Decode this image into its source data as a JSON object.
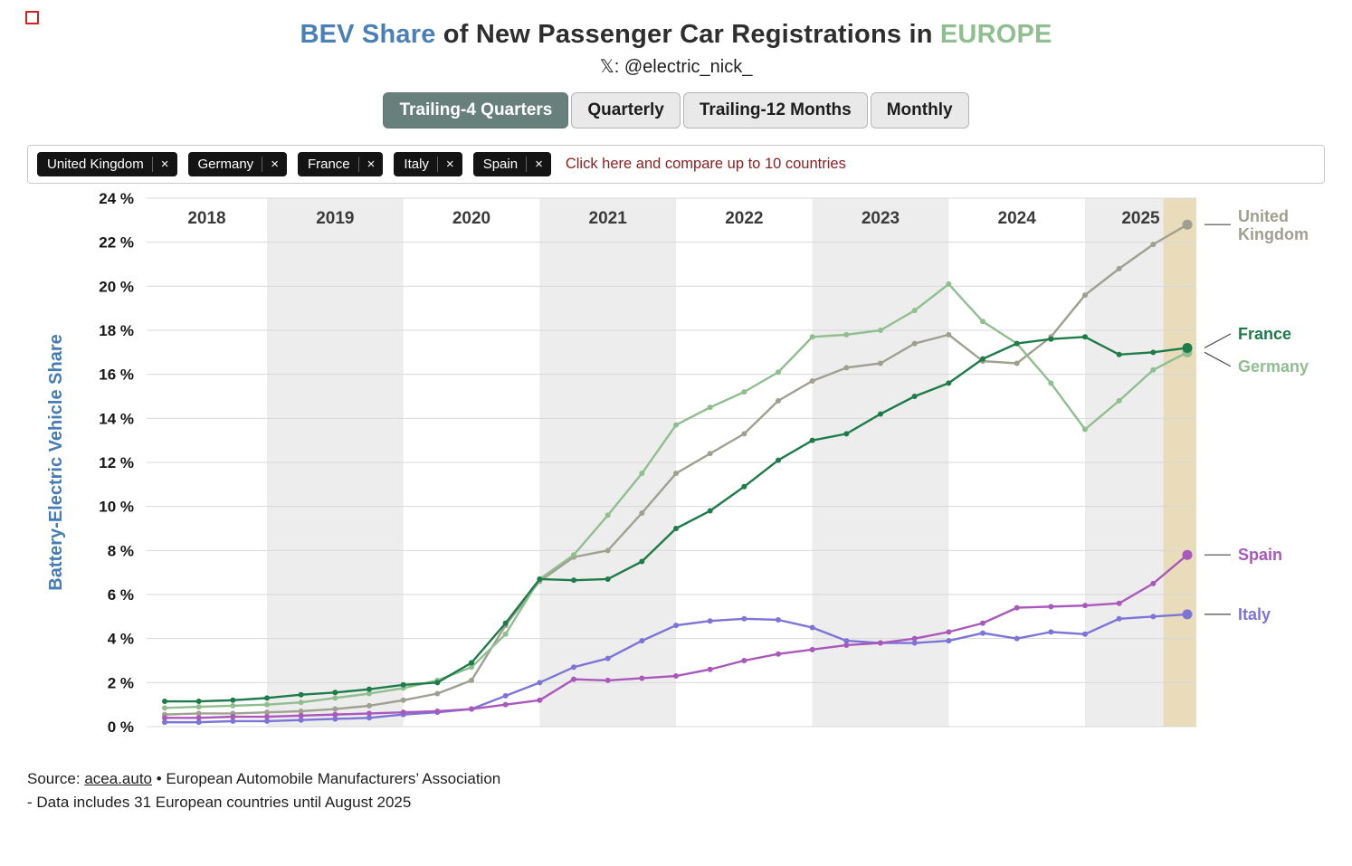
{
  "header": {
    "title_bev": "BEV Share",
    "title_mid": "of New Passenger Car Registrations in",
    "title_region": "EUROPE",
    "subtitle": "𝕏: @electric_nick_"
  },
  "tabs": [
    {
      "label": "Trailing-4 Quarters",
      "selected": true
    },
    {
      "label": "Quarterly",
      "selected": false
    },
    {
      "label": "Trailing-12 Months",
      "selected": false
    },
    {
      "label": "Monthly",
      "selected": false
    }
  ],
  "filters": {
    "chips": [
      "United Kingdom",
      "Germany",
      "France",
      "Italy",
      "Spain"
    ],
    "remove_icon": "×",
    "hint": "Click here and compare up to 10 countries"
  },
  "chart_data": {
    "type": "line",
    "title": "BEV Share of New Passenger Car Registrations in EUROPE",
    "xlabel": "",
    "ylabel": "Battery-Electric Vehicle Share",
    "ylim": [
      0,
      24
    ],
    "ytick_step": 2,
    "ytick_suffix": " %",
    "grid": true,
    "x_years": [
      "2018",
      "2019",
      "2020",
      "2021",
      "2022",
      "2023",
      "2024",
      "2025"
    ],
    "year_boundary_indices": [
      3,
      7,
      11,
      15,
      19,
      23,
      27
    ],
    "band_fill": "#ededed",
    "highlight_band": {
      "from_index": 29.3,
      "color": "#e9dcba"
    },
    "x": [
      "2018 Q1",
      "2018 Q2",
      "2018 Q3",
      "2018 Q4",
      "2019 Q1",
      "2019 Q2",
      "2019 Q3",
      "2019 Q4",
      "2020 Q1",
      "2020 Q2",
      "2020 Q3",
      "2020 Q4",
      "2021 Q1",
      "2021 Q2",
      "2021 Q3",
      "2021 Q4",
      "2022 Q1",
      "2022 Q2",
      "2022 Q3",
      "2022 Q4",
      "2023 Q1",
      "2023 Q2",
      "2023 Q3",
      "2023 Q4",
      "2024 Q1",
      "2024 Q2",
      "2024 Q3",
      "2024 Q4",
      "2025 Q1",
      "2025 Q2",
      "2025 Q3"
    ],
    "series": [
      {
        "name": "United Kingdom",
        "color": "#a0a090",
        "values": [
          0.55,
          0.6,
          0.6,
          0.65,
          0.7,
          0.8,
          0.95,
          1.2,
          1.5,
          2.1,
          4.6,
          6.6,
          7.7,
          8.0,
          9.7,
          11.5,
          12.4,
          13.3,
          14.8,
          15.7,
          16.3,
          16.5,
          17.4,
          17.8,
          16.6,
          16.5,
          17.7,
          19.6,
          20.8,
          21.9,
          22.8
        ]
      },
      {
        "name": "Germany",
        "color": "#8fbe8f",
        "values": [
          0.85,
          0.9,
          0.95,
          1.0,
          1.1,
          1.3,
          1.5,
          1.75,
          2.1,
          2.7,
          4.2,
          6.7,
          7.8,
          9.6,
          11.5,
          13.7,
          14.5,
          15.2,
          16.1,
          17.7,
          17.8,
          18.0,
          18.9,
          20.1,
          18.4,
          17.4,
          15.6,
          13.5,
          14.8,
          16.2,
          17.0
        ]
      },
      {
        "name": "France",
        "color": "#1e7b4a",
        "values": [
          1.15,
          1.15,
          1.2,
          1.3,
          1.45,
          1.55,
          1.7,
          1.9,
          2.0,
          2.9,
          4.7,
          6.7,
          6.65,
          6.7,
          7.5,
          9.0,
          9.8,
          10.9,
          12.1,
          13.0,
          13.3,
          14.2,
          15.0,
          15.6,
          16.7,
          17.4,
          17.6,
          17.7,
          16.9,
          17.0,
          17.2
        ]
      },
      {
        "name": "Italy",
        "color": "#7d74d8",
        "values": [
          0.2,
          0.2,
          0.25,
          0.25,
          0.3,
          0.35,
          0.4,
          0.55,
          0.65,
          0.8,
          1.4,
          2.0,
          2.7,
          3.1,
          3.9,
          4.6,
          4.8,
          4.9,
          4.85,
          4.5,
          3.9,
          3.8,
          3.8,
          3.9,
          4.25,
          4.0,
          4.3,
          4.2,
          4.9,
          5.0,
          5.1
        ]
      },
      {
        "name": "Spain",
        "color": "#a958bb",
        "values": [
          0.4,
          0.4,
          0.45,
          0.45,
          0.5,
          0.55,
          0.6,
          0.65,
          0.7,
          0.8,
          1.0,
          1.2,
          2.15,
          2.1,
          2.2,
          2.3,
          2.6,
          3.0,
          3.3,
          3.5,
          3.7,
          3.8,
          4.0,
          4.3,
          4.7,
          5.4,
          5.45,
          5.5,
          5.6,
          6.5,
          7.8
        ]
      }
    ],
    "legend_position": "right"
  },
  "footer": {
    "source_prefix": "Source:",
    "source_link": "acea.auto",
    "source_suffix": "• European Automobile Manufacturers’ Association",
    "note": "- Data includes 31 European countries until August 2025"
  }
}
